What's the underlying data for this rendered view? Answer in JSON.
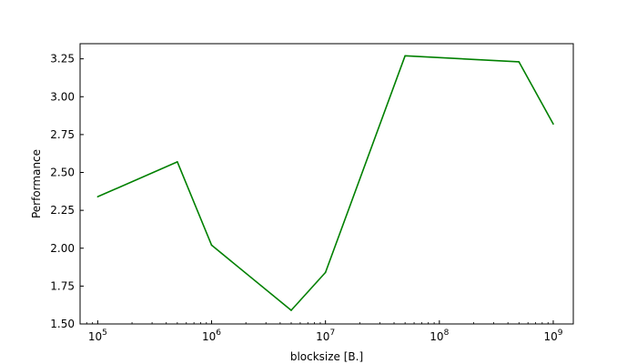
{
  "chart_data": {
    "type": "line",
    "title": "",
    "xlabel": "blocksize [B.]",
    "ylabel": "Performance",
    "xscale": "log",
    "xlim": [
      70000,
      1500000000
    ],
    "ylim": [
      1.5,
      3.35
    ],
    "grid": false,
    "legend": "none",
    "x_ticks": [
      {
        "value": 100000,
        "base": "10",
        "exp": "5"
      },
      {
        "value": 1000000,
        "base": "10",
        "exp": "6"
      },
      {
        "value": 10000000,
        "base": "10",
        "exp": "7"
      },
      {
        "value": 100000000,
        "base": "10",
        "exp": "8"
      },
      {
        "value": 1000000000,
        "base": "10",
        "exp": "9"
      }
    ],
    "y_ticks": [
      {
        "value": 1.5,
        "label": "1.50"
      },
      {
        "value": 1.75,
        "label": "1.75"
      },
      {
        "value": 2.0,
        "label": "2.00"
      },
      {
        "value": 2.25,
        "label": "2.25"
      },
      {
        "value": 2.5,
        "label": "2.50"
      },
      {
        "value": 2.75,
        "label": "2.75"
      },
      {
        "value": 3.0,
        "label": "3.00"
      },
      {
        "value": 3.25,
        "label": "3.25"
      }
    ],
    "series": [
      {
        "color": "#008000",
        "x": [
          100000,
          500000,
          1000000,
          5000000,
          10000000,
          50000000,
          500000000,
          1000000000
        ],
        "y": [
          2.34,
          2.57,
          2.02,
          1.59,
          1.84,
          3.27,
          3.23,
          2.82
        ]
      }
    ]
  }
}
